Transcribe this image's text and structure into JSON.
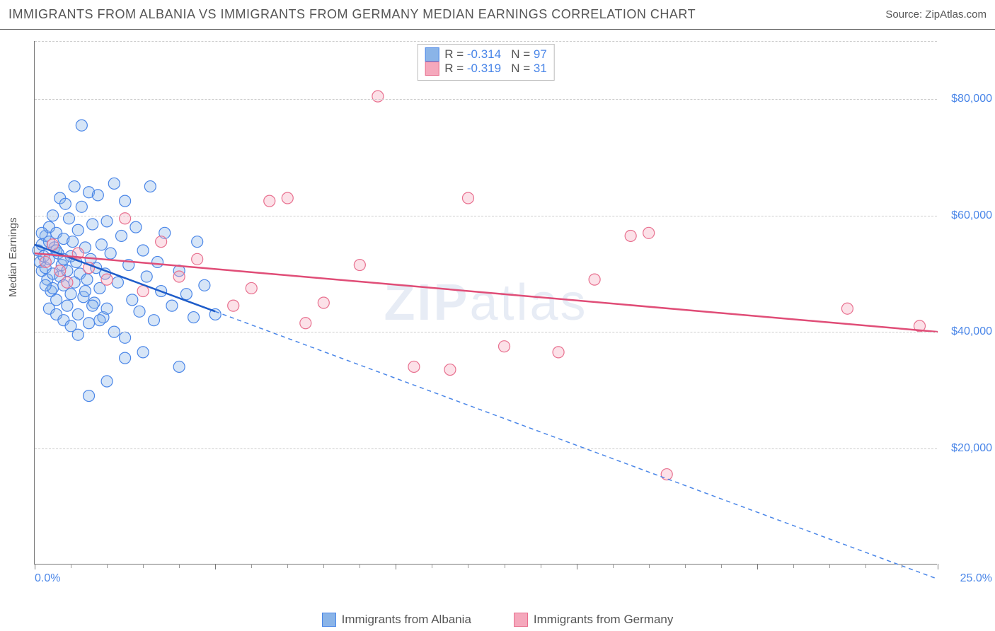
{
  "header": {
    "title": "IMMIGRANTS FROM ALBANIA VS IMMIGRANTS FROM GERMANY MEDIAN EARNINGS CORRELATION CHART",
    "source_prefix": "Source: ",
    "source_name": "ZipAtlas.com"
  },
  "watermark": {
    "bold": "ZIP",
    "rest": "atlas"
  },
  "chart": {
    "type": "scatter",
    "ylabel": "Median Earnings",
    "xlim": [
      0,
      25
    ],
    "ylim": [
      0,
      90000
    ],
    "x_tick_labels": {
      "min": "0.0%",
      "max": "25.0%"
    },
    "y_ticks": [
      {
        "v": 20000,
        "label": "$20,000"
      },
      {
        "v": 40000,
        "label": "$40,000"
      },
      {
        "v": 60000,
        "label": "$60,000"
      },
      {
        "v": 80000,
        "label": "$80,000"
      }
    ],
    "x_major_ticks": [
      0,
      5,
      10,
      15,
      20,
      25
    ],
    "x_minor_ticks": [
      1,
      2,
      3,
      4,
      6,
      7,
      8,
      9,
      11,
      12,
      13,
      14,
      16,
      17,
      18,
      19,
      21,
      22,
      23,
      24
    ],
    "background_color": "#ffffff",
    "grid_color": "#cccccc",
    "axis_color": "#777777",
    "label_color": "#4a86e8",
    "marker_radius": 8,
    "marker_opacity": 0.35,
    "series": [
      {
        "name": "Immigrants from Albania",
        "r_value": "-0.314",
        "n_value": "97",
        "color_fill": "#8ab4e8",
        "color_stroke": "#4a86e8",
        "trend_color": "#1e5cc9",
        "trend": {
          "x1": 0,
          "y1": 55000,
          "x2": 5,
          "y2": 43500,
          "ext_x2": 25,
          "ext_y2": -2500
        },
        "points": [
          [
            0.1,
            54000
          ],
          [
            0.15,
            52000
          ],
          [
            0.2,
            50500
          ],
          [
            0.2,
            55000
          ],
          [
            0.25,
            53000
          ],
          [
            0.3,
            56500
          ],
          [
            0.3,
            51000
          ],
          [
            0.35,
            49000
          ],
          [
            0.4,
            58000
          ],
          [
            0.4,
            52500
          ],
          [
            0.45,
            47000
          ],
          [
            0.5,
            60000
          ],
          [
            0.5,
            50000
          ],
          [
            0.5,
            47500
          ],
          [
            0.55,
            54500
          ],
          [
            0.6,
            57000
          ],
          [
            0.6,
            45500
          ],
          [
            0.65,
            53500
          ],
          [
            0.7,
            63000
          ],
          [
            0.7,
            49500
          ],
          [
            0.75,
            51500
          ],
          [
            0.8,
            56000
          ],
          [
            0.8,
            48000
          ],
          [
            0.85,
            62000
          ],
          [
            0.9,
            50500
          ],
          [
            0.9,
            44500
          ],
          [
            0.95,
            59500
          ],
          [
            1.0,
            53000
          ],
          [
            1.0,
            46500
          ],
          [
            1.05,
            55500
          ],
          [
            1.1,
            65000
          ],
          [
            1.1,
            48500
          ],
          [
            1.15,
            52000
          ],
          [
            1.2,
            57500
          ],
          [
            1.2,
            43000
          ],
          [
            1.25,
            50000
          ],
          [
            1.3,
            61500
          ],
          [
            1.35,
            46000
          ],
          [
            1.4,
            54500
          ],
          [
            1.45,
            49000
          ],
          [
            1.5,
            64000
          ],
          [
            1.5,
            41500
          ],
          [
            1.55,
            52500
          ],
          [
            1.6,
            58500
          ],
          [
            1.65,
            45000
          ],
          [
            1.7,
            51000
          ],
          [
            1.75,
            63500
          ],
          [
            1.8,
            47500
          ],
          [
            1.85,
            55000
          ],
          [
            1.9,
            42500
          ],
          [
            1.95,
            50000
          ],
          [
            2.0,
            59000
          ],
          [
            2.0,
            44000
          ],
          [
            2.1,
            53500
          ],
          [
            2.2,
            65500
          ],
          [
            2.2,
            40000
          ],
          [
            2.3,
            48500
          ],
          [
            2.4,
            56500
          ],
          [
            2.5,
            62500
          ],
          [
            2.5,
            39000
          ],
          [
            2.6,
            51500
          ],
          [
            2.7,
            45500
          ],
          [
            2.8,
            58000
          ],
          [
            2.9,
            43500
          ],
          [
            3.0,
            54000
          ],
          [
            3.0,
            36500
          ],
          [
            3.1,
            49500
          ],
          [
            3.2,
            65000
          ],
          [
            3.3,
            42000
          ],
          [
            3.4,
            52000
          ],
          [
            3.5,
            47000
          ],
          [
            3.6,
            57000
          ],
          [
            3.8,
            44500
          ],
          [
            4.0,
            50500
          ],
          [
            4.0,
            34000
          ],
          [
            4.2,
            46500
          ],
          [
            4.4,
            42500
          ],
          [
            4.5,
            55500
          ],
          [
            4.7,
            48000
          ],
          [
            5.0,
            43000
          ],
          [
            1.3,
            75500
          ],
          [
            1.5,
            29000
          ],
          [
            2.0,
            31500
          ],
          [
            2.5,
            35500
          ],
          [
            0.3,
            48000
          ],
          [
            0.4,
            44000
          ],
          [
            0.6,
            43000
          ],
          [
            0.8,
            42000
          ],
          [
            1.0,
            41000
          ],
          [
            1.2,
            39500
          ],
          [
            1.4,
            47000
          ],
          [
            1.6,
            44500
          ],
          [
            1.8,
            42000
          ],
          [
            0.2,
            57000
          ],
          [
            0.4,
            55500
          ],
          [
            0.6,
            54000
          ],
          [
            0.8,
            52500
          ]
        ]
      },
      {
        "name": "Immigrants from Germany",
        "r_value": "-0.319",
        "n_value": "31",
        "color_fill": "#f5a8bc",
        "color_stroke": "#e8708f",
        "trend_color": "#e04d77",
        "trend": {
          "x1": 0,
          "y1": 53500,
          "x2": 25,
          "y2": 40000
        },
        "points": [
          [
            0.3,
            52000
          ],
          [
            0.5,
            55000
          ],
          [
            0.7,
            50500
          ],
          [
            0.9,
            48500
          ],
          [
            1.2,
            53500
          ],
          [
            1.5,
            51000
          ],
          [
            2.0,
            49000
          ],
          [
            2.5,
            59500
          ],
          [
            3.0,
            47000
          ],
          [
            3.5,
            55500
          ],
          [
            4.0,
            49500
          ],
          [
            4.5,
            52500
          ],
          [
            5.5,
            44500
          ],
          [
            6.0,
            47500
          ],
          [
            6.5,
            62500
          ],
          [
            7.0,
            63000
          ],
          [
            7.5,
            41500
          ],
          [
            8.0,
            45000
          ],
          [
            9.0,
            51500
          ],
          [
            9.5,
            80500
          ],
          [
            10.5,
            34000
          ],
          [
            11.5,
            33500
          ],
          [
            12.0,
            63000
          ],
          [
            13.0,
            37500
          ],
          [
            14.5,
            36500
          ],
          [
            15.5,
            49000
          ],
          [
            16.5,
            56500
          ],
          [
            17.0,
            57000
          ],
          [
            17.5,
            15500
          ],
          [
            22.5,
            44000
          ],
          [
            24.5,
            41000
          ]
        ]
      }
    ]
  },
  "legend_top_labels": {
    "r": "R =",
    "n": "N ="
  },
  "legend_bottom": [
    {
      "series_idx": 0
    },
    {
      "series_idx": 1
    }
  ]
}
